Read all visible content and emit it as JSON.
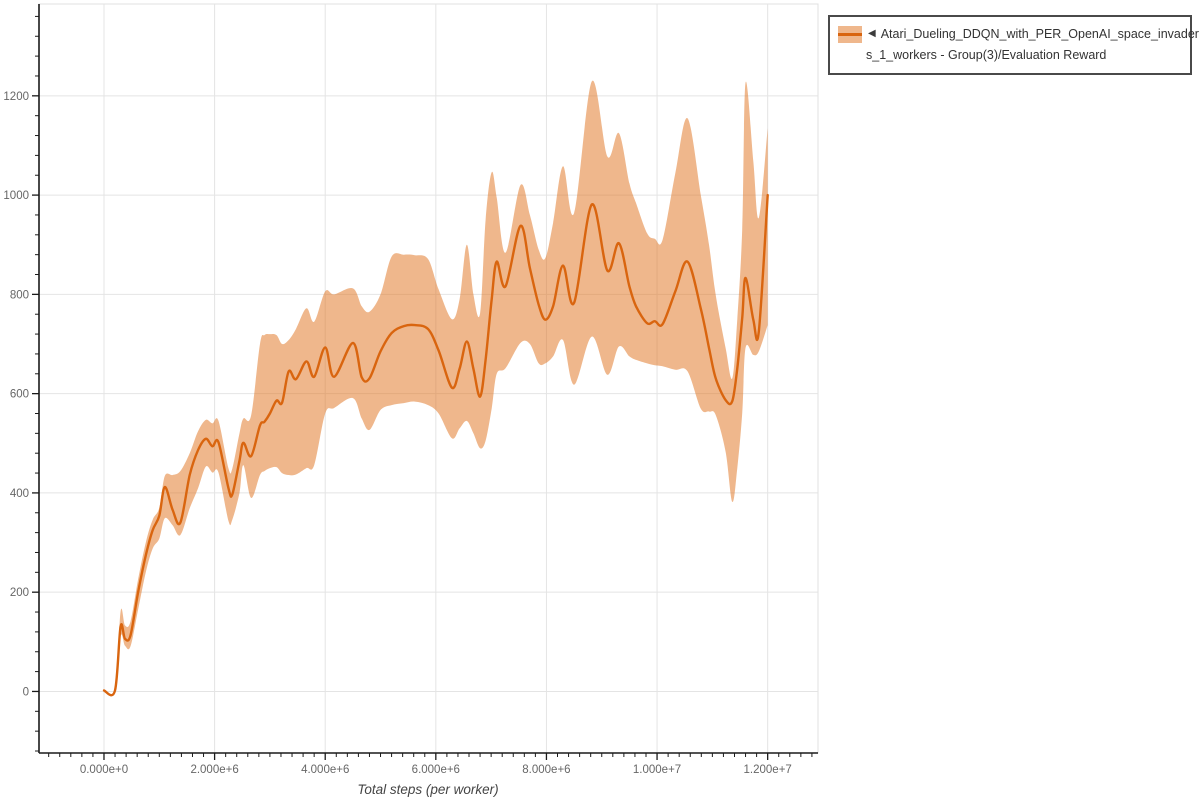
{
  "legend": {
    "toggle_icon": "◀",
    "label_line1": "Atari_Dueling_DDQN_with_PER_OpenAI_space_invader",
    "label_line2": "s_1_workers - Group(3)/Evaluation Reward",
    "border_color": "#4a4a4a"
  },
  "chart_data": {
    "type": "line",
    "title": "",
    "xlabel": "Total steps (per worker)",
    "ylabel": "",
    "grid": true,
    "legend_position": "top-right-outside",
    "x_unit": 1000000,
    "xlim_e6": [
      -1.175,
      12.91
    ],
    "ylim": [
      -124,
      1385
    ],
    "x_ticks_e6": [
      0,
      2,
      4,
      6,
      8,
      10,
      12
    ],
    "x_tick_labels": [
      "0.000e+0",
      "2.000e+6",
      "4.000e+6",
      "6.000e+6",
      "8.000e+6",
      "1.000e+7",
      "1.200e+7"
    ],
    "x_minor_ticks_e6": {
      "start": -1.0,
      "end": 12.8,
      "step": 0.2
    },
    "y_ticks": [
      0,
      200,
      400,
      600,
      800,
      1000,
      1200
    ],
    "y_tick_labels": [
      "0",
      "200",
      "400",
      "600",
      "800",
      "1000",
      "1200"
    ],
    "y_minor_ticks": {
      "start": -120,
      "end": 1360,
      "step": 40
    },
    "grid_color": "#e4e4e4",
    "axis_color": "#1a1a1a",
    "series": [
      {
        "name": "Atari_Dueling_DDQN_with_PER_OpenAI_space_invaders_1_workers - Group(3)/Evaluation Reward",
        "color": "#d9650f",
        "band_color_hex": "#efb78c",
        "band_rgba": "rgba(224,112,26,0.5)",
        "x_e6": [
          0.0,
          0.2,
          0.3,
          0.38,
          0.48,
          0.62,
          0.76,
          0.88,
          1.0,
          1.1,
          1.24,
          1.38,
          1.55,
          1.7,
          1.84,
          1.96,
          2.07,
          2.25,
          2.32,
          2.45,
          2.52,
          2.66,
          2.82,
          2.9,
          3.0,
          3.12,
          3.22,
          3.34,
          3.47,
          3.66,
          3.8,
          4.0,
          4.16,
          4.5,
          4.66,
          4.8,
          5.0,
          5.2,
          5.42,
          5.62,
          5.86,
          6.05,
          6.29,
          6.43,
          6.56,
          6.68,
          6.8,
          6.9,
          7.01,
          7.1,
          7.26,
          7.53,
          7.7,
          7.86,
          7.98,
          8.12,
          8.3,
          8.5,
          8.82,
          9.1,
          9.31,
          9.5,
          9.62,
          9.82,
          9.96,
          10.1,
          10.33,
          10.55,
          10.79,
          10.94,
          11.06,
          11.24,
          11.36,
          11.45,
          11.54,
          11.6,
          11.74,
          11.84,
          12.0
        ],
        "y": [
          2,
          2,
          131,
          106,
          113,
          202,
          276,
          325,
          354,
          412,
          366,
          340,
          436,
          486,
          509,
          494,
          502,
          410,
          397,
          465,
          501,
          474,
          536,
          543,
          560,
          586,
          582,
          645,
          629,
          665,
          634,
          693,
          634,
          702,
          633,
          631,
          685,
          722,
          736,
          738,
          730,
          687,
          612,
          650,
          705,
          650,
          594,
          668,
          790,
          866,
          816,
          938,
          853,
          779,
          749,
          776,
          858,
          783,
          981,
          848,
          903,
          816,
          776,
          742,
          746,
          740,
          806,
          866,
          772,
          692,
          631,
          587,
          585,
          651,
          752,
          833,
          749,
          725,
          1000
        ],
        "band_low": [
          2,
          2,
          111,
          92,
          91,
          167,
          242,
          288,
          308,
          349,
          335,
          315,
          369,
          409,
          453,
          441,
          441,
          344,
          346,
          400,
          456,
          390,
          436,
          444,
          450,
          452,
          440,
          436,
          437,
          450,
          456,
          560,
          571,
          591,
          550,
          527,
          567,
          577,
          581,
          584,
          577,
          560,
          510,
          530,
          545,
          520,
          490,
          505,
          570,
          640,
          651,
          702,
          700,
          661,
          661,
          675,
          708,
          618,
          715,
          638,
          695,
          675,
          668,
          661,
          657,
          655,
          648,
          645,
          570,
          564,
          557,
          483,
          382,
          450,
          560,
          692,
          678,
          685,
          738
        ],
        "band_high": [
          2,
          2,
          161,
          133,
          141,
          228,
          302,
          346,
          370,
          434,
          436,
          444,
          480,
          524,
          547,
          540,
          545,
          450,
          449,
          520,
          550,
          556,
          700,
          718,
          720,
          718,
          700,
          708,
          730,
          772,
          745,
          806,
          800,
          812,
          776,
          765,
          800,
          876,
          880,
          879,
          871,
          810,
          750,
          790,
          900,
          800,
          762,
          950,
          1046,
          995,
          884,
          1020,
          960,
          890,
          873,
          944,
          1058,
          964,
          1229,
          1078,
          1125,
          1024,
          984,
          923,
          912,
          910,
          1044,
          1155,
          1001,
          900,
          799,
          692,
          631,
          750,
          930,
          1226,
          1068,
          954,
          1135
        ]
      }
    ]
  }
}
